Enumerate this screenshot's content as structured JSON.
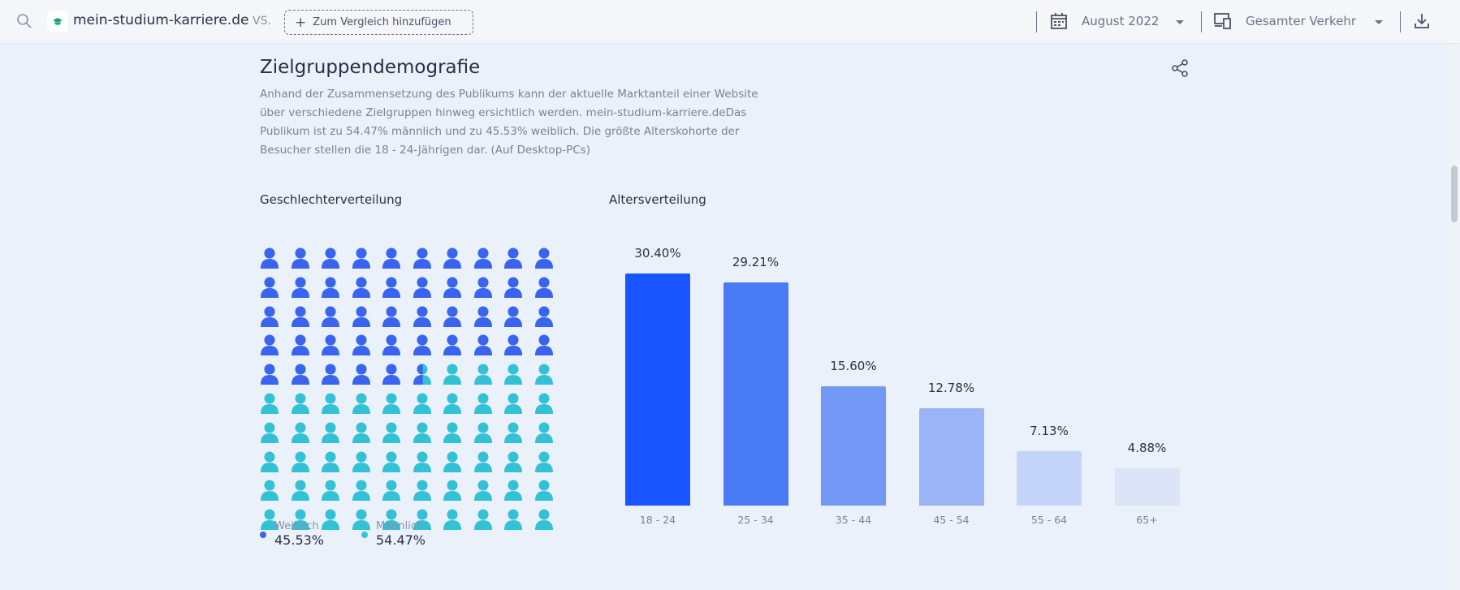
{
  "topbar": {
    "site": "mein-studium-karriere.de",
    "vs": "VS.",
    "add_compare": "Zum Vergleich hinzufügen",
    "date": "August 2022",
    "traffic": "Gesamter Verkehr",
    "icons": [
      "search-icon",
      "graduation-cap-icon",
      "plus-icon",
      "calendar-icon",
      "devices-icon",
      "download-icon"
    ]
  },
  "section": {
    "title": "Zielgruppendemografie",
    "description": "Anhand der Zusammensetzung des Publikums kann der aktuelle Marktanteil einer Website über verschiedene Zielgruppen hinweg ersichtlich werden. mein-studium-karriere.deDas Publikum ist zu 54.47% männlich und zu 45.53% weiblich. Die größte Alterskohorte der Besucher stellen die 18 - 24-Jährigen dar. (Auf Desktop-PCs)"
  },
  "gender": {
    "title": "Geschlechterverteilung",
    "female_label": "Weiblich",
    "female_value": "45.53%",
    "female_pct": 45.53,
    "male_label": "Männlich",
    "male_value": "54.47%",
    "male_pct": 54.47,
    "female_color": "#3a64f0",
    "male_color": "#33c1d6"
  },
  "chart_data": {
    "type": "bar",
    "title": "Altersverteilung",
    "categories": [
      "18 - 24",
      "25 - 34",
      "35 - 44",
      "45 - 54",
      "55 - 64",
      "65+"
    ],
    "values": [
      30.4,
      29.21,
      15.6,
      12.78,
      7.13,
      4.88
    ],
    "labels": [
      "30.40%",
      "29.21%",
      "15.60%",
      "12.78%",
      "7.13%",
      "4.88%"
    ],
    "colors": [
      "#1a56ff",
      "#4a7bf7",
      "#7398f5",
      "#9bb4f6",
      "#c4d3f8",
      "#dce5f8"
    ],
    "ylim": [
      0,
      30.4
    ]
  }
}
